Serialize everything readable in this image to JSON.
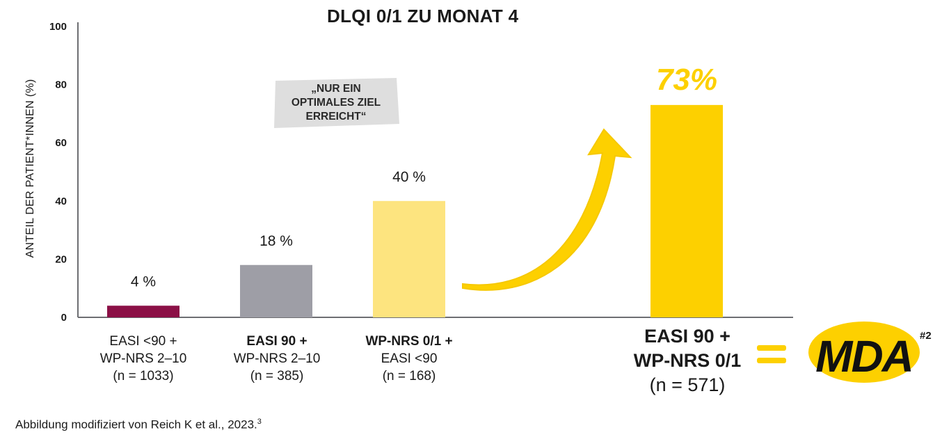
{
  "chart_data": {
    "type": "bar",
    "title": "DLQI 0/1 ZU MONAT 4",
    "ylabel": "ANTEIL DER PATIENT*INNEN (%)",
    "ylim": [
      0,
      100
    ],
    "yticks": [
      "0",
      "20",
      "40",
      "60",
      "80",
      "100"
    ],
    "bars": [
      {
        "value": 4,
        "label": "4 %",
        "color": "#8b1046",
        "cat_line1": "EASI <90 +",
        "cat_line2": "WP-NRS 2–10",
        "cat_line3": "(n = 1033)"
      },
      {
        "value": 18,
        "label": "18 %",
        "color": "#9e9ea6",
        "cat_line1": "EASI 90 +",
        "cat_line2": "WP-NRS 2–10",
        "cat_line3": "(n = 385)"
      },
      {
        "value": 40,
        "label": "40 %",
        "color": "#fde47f",
        "cat_line1": "WP-NRS 0/1 +",
        "cat_line2": "EASI <90",
        "cat_line3": "(n = 168)"
      },
      {
        "value": 73,
        "label": "73%",
        "color": "#fdd000",
        "cat_line1": "EASI 90 +",
        "cat_line2": "WP-NRS 0/1",
        "cat_line3": "(n = 571)"
      }
    ],
    "grid": false
  },
  "annotation": {
    "line1": "„NUR EIN",
    "line2": "OPTIMALES ZIEL",
    "line3": "ERREICHT“"
  },
  "mda": {
    "label": "MDA",
    "sup": "#2"
  },
  "footer": {
    "text": "Abbildung modifiziert von Reich K et al., 2023.",
    "sup": "3"
  },
  "colors": {
    "accent": "#fdd000",
    "note_bg": "#dedede",
    "axis": "#6d6e72"
  }
}
